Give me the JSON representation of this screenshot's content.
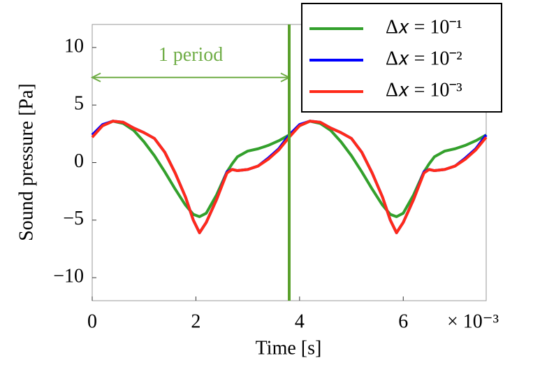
{
  "chart_data": {
    "type": "line",
    "xlabel": "Time [s]",
    "ylabel": "Sound pressure [Pa]",
    "x_multiplier": "× 10⁻³",
    "x": [
      0,
      0.2,
      0.4,
      0.6,
      0.8,
      1.0,
      1.2,
      1.4,
      1.6,
      1.8,
      1.95,
      2.07,
      2.2,
      2.4,
      2.6,
      2.7,
      2.8,
      3.0,
      3.2,
      3.4,
      3.6,
      3.8,
      4.0,
      4.2,
      4.4,
      4.6,
      4.8,
      5.0,
      5.2,
      5.4,
      5.6,
      5.75,
      5.87,
      6.0,
      6.2,
      6.4,
      6.5,
      6.6,
      6.8,
      7.0,
      7.2,
      7.4,
      7.6
    ],
    "series": [
      {
        "name": "Δ𝑥 = 10⁻¹",
        "color": "#33a02c",
        "values": [
          2.4,
          3.2,
          3.6,
          3.4,
          2.8,
          1.8,
          0.6,
          -0.8,
          -2.3,
          -3.7,
          -4.5,
          -4.7,
          -4.4,
          -2.8,
          -0.8,
          -0.1,
          0.5,
          1.0,
          1.2,
          1.5,
          1.9,
          2.4,
          3.2,
          3.6,
          3.4,
          2.8,
          1.8,
          0.6,
          -0.8,
          -2.3,
          -3.7,
          -4.5,
          -4.7,
          -4.4,
          -2.8,
          -0.8,
          -0.1,
          0.5,
          1.0,
          1.2,
          1.5,
          1.9,
          2.4
        ]
      },
      {
        "name": "Δ𝑥 = 10⁻²",
        "color": "#0000ff",
        "values": [
          2.4,
          3.3,
          3.6,
          3.5,
          3.0,
          2.6,
          2.1,
          0.9,
          -0.9,
          -3.0,
          -5.0,
          -6.1,
          -5.2,
          -3.2,
          -0.8,
          -0.6,
          -0.7,
          -0.6,
          -0.3,
          0.4,
          1.2,
          2.4,
          3.3,
          3.6,
          3.5,
          3.0,
          2.6,
          2.1,
          0.9,
          -0.9,
          -3.0,
          -5.0,
          -6.1,
          -5.2,
          -3.2,
          -0.8,
          -0.6,
          -0.7,
          -0.6,
          -0.3,
          0.4,
          1.2,
          2.4
        ]
      },
      {
        "name": "Δ𝑥 = 10⁻³",
        "color": "#ff2a1a",
        "values": [
          2.2,
          3.2,
          3.6,
          3.5,
          3.0,
          2.6,
          2.1,
          0.9,
          -0.9,
          -3.0,
          -5.0,
          -6.1,
          -5.2,
          -3.2,
          -0.9,
          -0.6,
          -0.7,
          -0.6,
          -0.3,
          0.3,
          1.1,
          2.2,
          3.2,
          3.6,
          3.5,
          3.0,
          2.6,
          2.1,
          0.9,
          -0.9,
          -3.0,
          -5.0,
          -6.1,
          -5.2,
          -3.2,
          -0.9,
          -0.6,
          -0.7,
          -0.6,
          -0.3,
          0.3,
          1.1,
          2.2
        ]
      }
    ],
    "xlim": [
      0,
      7.6
    ],
    "ylim": [
      -12,
      12
    ],
    "xticks": [
      0,
      2,
      4,
      6
    ],
    "yticks": [
      {
        "value": -10,
        "label": "−10"
      },
      {
        "value": -5,
        "label": "−5"
      },
      0,
      5,
      10
    ],
    "legend": "upper right",
    "period_vline": {
      "x": 3.8,
      "color": "#5aa02c"
    },
    "period_arrow": {
      "text": "1 period",
      "x": [
        0,
        3.8
      ],
      "y": 7.4,
      "color": "#70ad47"
    }
  }
}
